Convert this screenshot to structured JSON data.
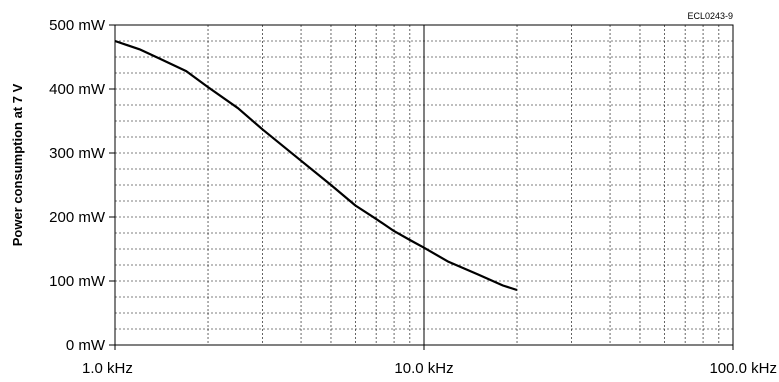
{
  "chart_data": {
    "type": "line",
    "figure_code": "ECL0243-9",
    "ylabel": "Power consumption at 7 V",
    "xscale": "log",
    "xlim": [
      1.0,
      100.0
    ],
    "ylim": [
      0,
      500
    ],
    "grid": true,
    "legend": "none",
    "x_ticks": [
      {
        "value": 1.0,
        "label": "1.0 kHz"
      },
      {
        "value": 10.0,
        "label": "10.0 kHz"
      },
      {
        "value": 100.0,
        "label": "100.0 kHz"
      }
    ],
    "y_ticks": [
      {
        "value": 0,
        "label": "0 mW"
      },
      {
        "value": 100,
        "label": "100 mW"
      },
      {
        "value": 200,
        "label": "200 mW"
      },
      {
        "value": 300,
        "label": "300 mW"
      },
      {
        "value": 400,
        "label": "400 mW"
      },
      {
        "value": 500,
        "label": "500 mW"
      }
    ],
    "series": [
      {
        "color": "#000000",
        "x": [
          1.0,
          1.2,
          1.4,
          1.7,
          2.0,
          2.5,
          3.0,
          4.0,
          5.0,
          6.0,
          7.0,
          8.0,
          9.0,
          10.0,
          12.0,
          15.0,
          18.0,
          20.0
        ],
        "y": [
          475,
          462,
          447,
          428,
          403,
          370,
          337,
          288,
          250,
          218,
          197,
          178,
          164,
          152,
          130,
          110,
          93,
          86
        ]
      }
    ]
  }
}
